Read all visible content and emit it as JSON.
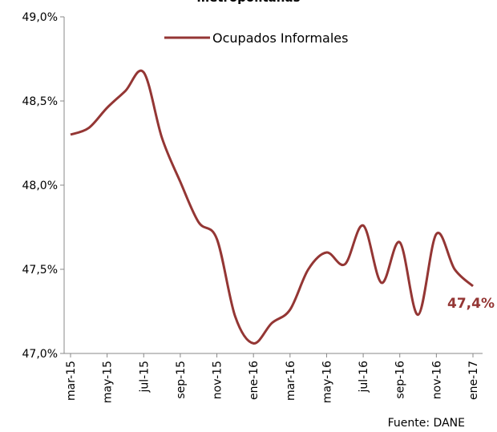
{
  "chart_data": {
    "type": "line",
    "title": "metropolitanas",
    "categories": [
      "mar-15",
      null,
      "may-15",
      null,
      "jul-15",
      null,
      "sep-15",
      null,
      "nov-15",
      null,
      "ene-16",
      null,
      "mar-16",
      null,
      "may-16",
      null,
      "jul-16",
      null,
      "sep-16",
      null,
      "nov-16",
      null,
      "ene-17"
    ],
    "series": [
      {
        "name": "Ocupados Informales",
        "color": "#943634",
        "values": [
          48.3,
          48.34,
          48.46,
          48.56,
          48.67,
          48.28,
          48.02,
          47.78,
          47.68,
          47.22,
          47.06,
          47.18,
          47.26,
          47.5,
          47.6,
          47.53,
          47.76,
          47.42,
          47.66,
          47.23,
          47.71,
          47.5,
          47.4
        ]
      }
    ],
    "ylim": [
      47,
      49
    ],
    "yticks": [
      {
        "value": 47,
        "label": "47,0%"
      },
      {
        "value": 47.5,
        "label": "47,5%"
      },
      {
        "value": 48,
        "label": "48,0%"
      },
      {
        "value": 48.5,
        "label": "48,5%"
      },
      {
        "value": 49,
        "label": "49,0%"
      }
    ],
    "grid": false,
    "annotations": [
      "47,4%"
    ],
    "source": "Fuente: DANE"
  }
}
